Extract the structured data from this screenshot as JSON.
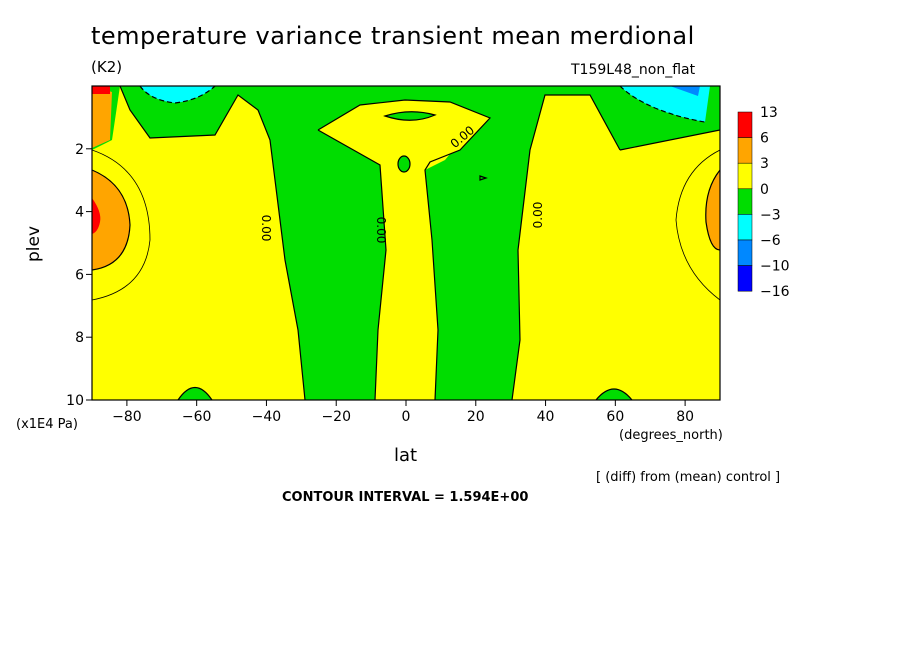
{
  "chart_data": {
    "type": "contour",
    "title": "temperature variance transient mean merdional",
    "units": "(K2)",
    "run_label": "T159L48_non_flat",
    "xlabel": "lat",
    "x_unit": "(degrees_north)",
    "ylabel": "plev",
    "y_unit": "(x1E4 Pa)",
    "xlim": [
      -90,
      90
    ],
    "ylim": [
      10,
      0
    ],
    "x_ticks": [
      -80,
      -60,
      -40,
      -20,
      0,
      20,
      40,
      60,
      80
    ],
    "y_ticks": [
      2,
      4,
      6,
      8,
      10
    ],
    "contour_labels": [
      "0.00",
      "0.00",
      "0.00",
      "0.00"
    ],
    "legend_levels": [
      "13",
      "6",
      "3",
      "0",
      "−3",
      "−6",
      "−10",
      "−16"
    ],
    "legend_colors": [
      "#ff0000",
      "#ffa500",
      "#ffff00",
      "#00dd00",
      "#00ffff",
      "#0088ff",
      "#0000ff"
    ],
    "note": "[ (diff) from (mean) control ]",
    "contour_interval": "CONTOUR INTERVAL = 1.594E+00"
  }
}
